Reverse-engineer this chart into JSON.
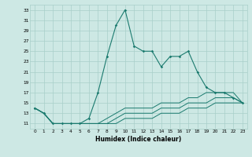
{
  "xlabel": "Humidex (Indice chaleur)",
  "x": [
    0,
    1,
    2,
    3,
    4,
    5,
    6,
    7,
    8,
    9,
    10,
    11,
    12,
    13,
    14,
    15,
    16,
    17,
    18,
    19,
    20,
    21,
    22,
    23
  ],
  "main_line": [
    14,
    13,
    11,
    11,
    11,
    11,
    12,
    17,
    24,
    30,
    33,
    26,
    25,
    25,
    22,
    24,
    24,
    25,
    21,
    18,
    17,
    17,
    16,
    15
  ],
  "line2": [
    14,
    13,
    11,
    11,
    11,
    11,
    11,
    11,
    12,
    13,
    14,
    14,
    14,
    14,
    15,
    15,
    15,
    16,
    16,
    17,
    17,
    17,
    17,
    15
  ],
  "line3": [
    14,
    13,
    11,
    11,
    11,
    11,
    11,
    11,
    11,
    12,
    13,
    13,
    13,
    13,
    14,
    14,
    14,
    15,
    15,
    15,
    16,
    16,
    16,
    15
  ],
  "line4": [
    14,
    13,
    11,
    11,
    11,
    11,
    11,
    11,
    11,
    11,
    12,
    12,
    12,
    12,
    13,
    13,
    13,
    14,
    14,
    14,
    15,
    15,
    15,
    15
  ],
  "ylim": [
    10,
    34
  ],
  "xlim": [
    -0.5,
    23.5
  ],
  "yticks": [
    11,
    13,
    15,
    17,
    19,
    21,
    23,
    25,
    27,
    29,
    31,
    33
  ],
  "xticks": [
    0,
    1,
    2,
    3,
    4,
    5,
    6,
    7,
    8,
    9,
    10,
    11,
    12,
    13,
    14,
    15,
    16,
    17,
    18,
    19,
    20,
    21,
    22,
    23
  ],
  "line_color": "#1a7a6e",
  "bg_color": "#cde8e4",
  "grid_color": "#a8cfc9"
}
